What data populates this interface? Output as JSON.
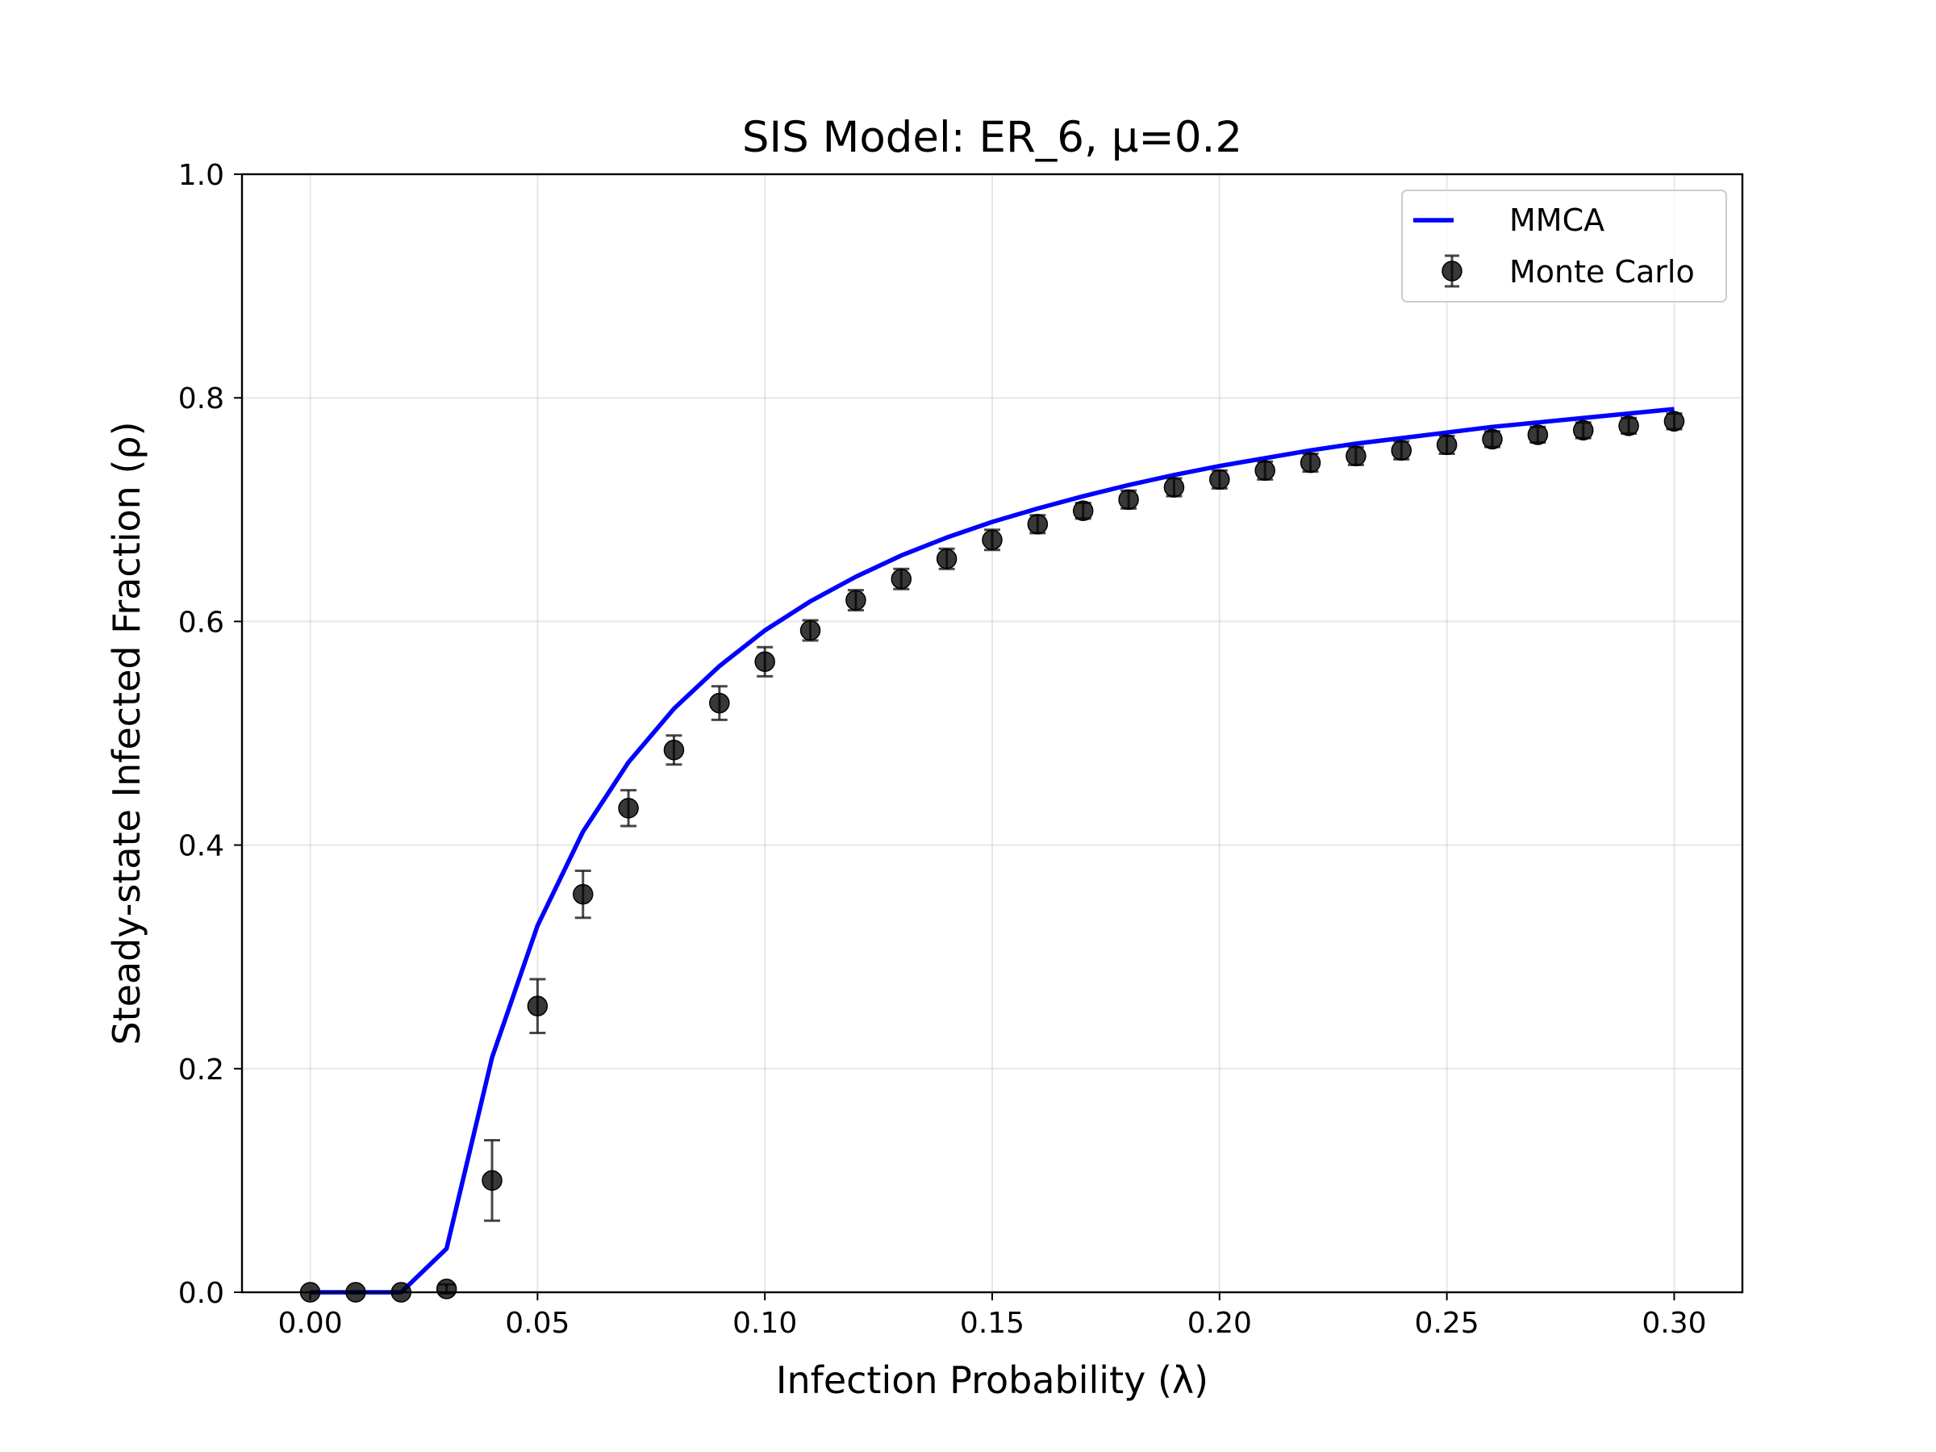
{
  "chart_data": {
    "type": "line",
    "title": "SIS Model: ER_6, μ=0.2",
    "xlabel": "Infection Probability (λ)",
    "ylabel": "Steady-state Infected Fraction (ρ)",
    "xlim": [
      -0.015,
      0.315
    ],
    "ylim": [
      0.0,
      1.0
    ],
    "xticks": [
      0.0,
      0.05,
      0.1,
      0.15,
      0.2,
      0.25,
      0.3
    ],
    "xtick_labels": [
      "0.00",
      "0.05",
      "0.10",
      "0.15",
      "0.20",
      "0.25",
      "0.30"
    ],
    "yticks": [
      0.0,
      0.2,
      0.4,
      0.6,
      0.8,
      1.0
    ],
    "ytick_labels": [
      "0.0",
      "0.2",
      "0.4",
      "0.6",
      "0.8",
      "1.0"
    ],
    "grid": true,
    "legend_position": "top-right",
    "series": [
      {
        "name": "MMCA",
        "kind": "line",
        "color": "#0000ff",
        "x": [
          0.0,
          0.01,
          0.02,
          0.03,
          0.04,
          0.05,
          0.06,
          0.07,
          0.08,
          0.09,
          0.1,
          0.11,
          0.12,
          0.13,
          0.14,
          0.15,
          0.16,
          0.17,
          0.18,
          0.19,
          0.2,
          0.21,
          0.22,
          0.23,
          0.24,
          0.25,
          0.26,
          0.27,
          0.28,
          0.29,
          0.3
        ],
        "y": [
          0.0,
          0.0,
          0.0,
          0.039,
          0.21,
          0.328,
          0.412,
          0.474,
          0.522,
          0.56,
          0.592,
          0.618,
          0.64,
          0.659,
          0.675,
          0.689,
          0.701,
          0.712,
          0.722,
          0.731,
          0.739,
          0.746,
          0.753,
          0.759,
          0.764,
          0.769,
          0.774,
          0.778,
          0.782,
          0.786,
          0.79
        ]
      },
      {
        "name": "Monte Carlo",
        "kind": "errorbar",
        "color": "#1a1a1a",
        "x": [
          0.0,
          0.01,
          0.02,
          0.03,
          0.04,
          0.05,
          0.06,
          0.07,
          0.08,
          0.09,
          0.1,
          0.11,
          0.12,
          0.13,
          0.14,
          0.15,
          0.16,
          0.17,
          0.18,
          0.19,
          0.2,
          0.21,
          0.22,
          0.23,
          0.24,
          0.25,
          0.26,
          0.27,
          0.28,
          0.29,
          0.3
        ],
        "y": [
          0.0,
          0.0,
          0.0,
          0.003,
          0.1,
          0.256,
          0.356,
          0.433,
          0.485,
          0.527,
          0.564,
          0.592,
          0.619,
          0.638,
          0.656,
          0.673,
          0.687,
          0.699,
          0.709,
          0.72,
          0.727,
          0.735,
          0.742,
          0.748,
          0.753,
          0.758,
          0.763,
          0.767,
          0.771,
          0.775,
          0.779
        ],
        "err": [
          0.0,
          0.0,
          0.0,
          0.004,
          0.036,
          0.024,
          0.021,
          0.016,
          0.013,
          0.015,
          0.013,
          0.009,
          0.009,
          0.009,
          0.009,
          0.009,
          0.008,
          0.007,
          0.008,
          0.008,
          0.008,
          0.008,
          0.008,
          0.008,
          0.008,
          0.008,
          0.007,
          0.007,
          0.007,
          0.007,
          0.007
        ]
      }
    ]
  }
}
